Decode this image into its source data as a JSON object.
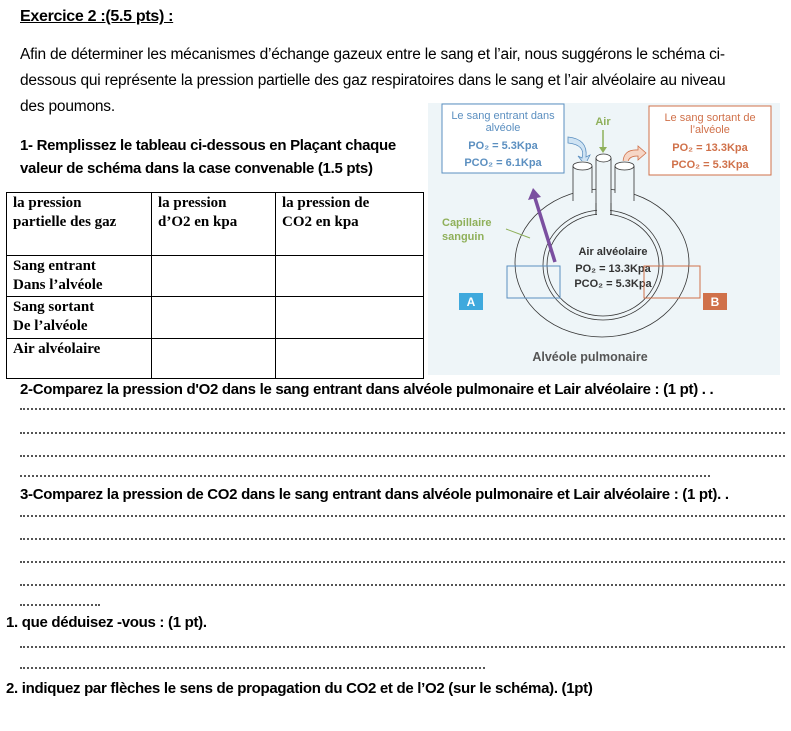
{
  "title": "Exercice 2 :(5.5 pts) :",
  "intro": "Afin de déterminer les mécanismes d’échange gazeux entre le sang et l’air, alvéolaire nous suggérons le schéma ci-dessous qui représente la pression partielle des gaz respiratoires dans le sang et l’air alvéolaire au niveau des poumons.",
  "intro_lines": [
    "Afin de déterminer les mécanismes d’échange gazeux entre le sang et l’air, nous suggérons le schéma  ci-",
    "dessous qui représente la pression partielle des gaz respiratoires dans le sang et l’air alvéolaire au niveau",
    "des poumons."
  ],
  "q1": [
    "1- Remplissez le tableau ci-dessous en Plaçant chaque",
    "valeur de schéma dans la case convenable (1.5 pts)"
  ],
  "table": {
    "headers": [
      [
        "la pression",
        "partielle des gaz"
      ],
      [
        "la pression",
        "d’O2 en kpa"
      ],
      [
        "la pression de",
        "CO2 en kpa"
      ]
    ],
    "rows": [
      [
        "Sang entrant",
        " Dans l’alvéole"
      ],
      [
        "Sang sortant",
        "De l’alvéole"
      ],
      [
        "Air alvéolaire",
        ""
      ]
    ]
  },
  "diagram": {
    "left_box": {
      "l1": "Le sang entrant dans",
      "l2": "alvéole",
      "po2": "PO₂ = 5.3Kpa",
      "pco2": "PCO₂ = 6.1Kpa"
    },
    "right_box": {
      "l1": "Le sang sortant de",
      "l2": "l’alvéole",
      "po2": "PO₂ = 13.3Kpa",
      "pco2": "PCO₂ = 5.3Kpa"
    },
    "air": "Air",
    "capillaire": [
      "Capillaire",
      "sanguin"
    ],
    "alveolar": {
      "title": "Air alvéolaire",
      "po2": "PO₂ = 13.3Kpa",
      "pco2": "PCO₂ = 5.3Kpa"
    },
    "label_a": "A",
    "label_b": "B",
    "caption": "Alvéole pulmonaire",
    "colors": {
      "blue": "#5b8fc0",
      "orange": "#d0714a",
      "green": "#8fb05a",
      "purple": "#7b4fa0"
    }
  },
  "q2": "2-Comparez la pression d'O2 dans le sang entrant dans alvéole pulmonaire  et Lair  alvéolaire :  (1 pt)  . .",
  "q3": "3-Comparez la pression de CO2 dans le sang entrant dans alvéole pulmonaire  et Lair  alvéolaire : (1 pt).  .",
  "q4": "1.   que déduisez -vous : (1 pt).",
  "q5": "2.  indiquez  par  flèches le  sens  de propagation du CO2 et de l’O2 (sur le schéma). (1pt)"
}
